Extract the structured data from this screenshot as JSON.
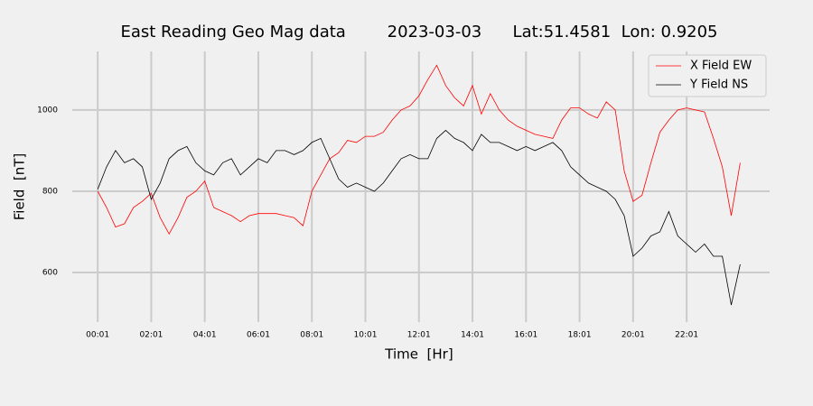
{
  "chart_data": {
    "type": "line",
    "title": "East Reading Geo Mag data        2023-03-03      Lat:51.4581  Lon: 0.9205",
    "xlabel": "Time  [Hr]",
    "ylabel": "Field  [nT]",
    "x": [
      1,
      21,
      41,
      61,
      81,
      101,
      121,
      141,
      161,
      181,
      201,
      221,
      241,
      261,
      281,
      301,
      321,
      341,
      361,
      381,
      401,
      421,
      441,
      461,
      481,
      501,
      521,
      541,
      561,
      581,
      601,
      621,
      641,
      661,
      681,
      701,
      721,
      741,
      761,
      781,
      801,
      821,
      841,
      861,
      881,
      901,
      921,
      941,
      961,
      981,
      1001,
      1021,
      1041,
      1061,
      1081,
      1101,
      1121,
      1141,
      1161,
      1181,
      1201,
      1221,
      1241,
      1261,
      1281,
      1301,
      1321,
      1341,
      1361,
      1381,
      1401,
      1421,
      1441
    ],
    "series": [
      {
        "name": "X Field EW",
        "color": "#ff0000",
        "values": [
          800,
          760,
          712,
          720,
          760,
          775,
          795,
          735,
          695,
          735,
          785,
          800,
          825,
          760,
          750,
          740,
          725,
          740,
          745,
          745,
          745,
          740,
          735,
          715,
          800,
          840,
          880,
          895,
          925,
          920,
          935,
          935,
          945,
          975,
          1000,
          1010,
          1035,
          1075,
          1110,
          1060,
          1030,
          1010,
          1060,
          990,
          1040,
          1000,
          975,
          960,
          950,
          940,
          935,
          930,
          975,
          1005,
          1005,
          990,
          980,
          1020,
          1000,
          850,
          775,
          790,
          870,
          945,
          975,
          1000,
          1005,
          1000,
          995,
          930,
          860,
          740,
          870
        ]
      },
      {
        "name": "Y Field NS",
        "color": "#000000",
        "values": [
          805,
          860,
          900,
          870,
          880,
          860,
          780,
          820,
          880,
          900,
          910,
          870,
          850,
          840,
          870,
          880,
          840,
          860,
          880,
          870,
          900,
          900,
          890,
          900,
          920,
          930,
          880,
          830,
          810,
          820,
          810,
          800,
          820,
          850,
          880,
          890,
          880,
          880,
          930,
          950,
          930,
          920,
          900,
          940,
          920,
          920,
          910,
          900,
          910,
          900,
          910,
          920,
          900,
          860,
          840,
          820,
          810,
          800,
          780,
          740,
          640,
          660,
          690,
          700,
          750,
          690,
          670,
          650,
          670,
          640,
          640,
          520,
          620
        ]
      }
    ],
    "xlim": [
      -56,
      1507
    ],
    "xticks": [
      {
        "value": 1,
        "label": "00:01"
      },
      {
        "value": 121,
        "label": "02:01"
      },
      {
        "value": 241,
        "label": "04:01"
      },
      {
        "value": 361,
        "label": "06:01"
      },
      {
        "value": 481,
        "label": "08:01"
      },
      {
        "value": 601,
        "label": "10:01"
      },
      {
        "value": 721,
        "label": "12:01"
      },
      {
        "value": 841,
        "label": "14:01"
      },
      {
        "value": 961,
        "label": "16:01"
      },
      {
        "value": 1081,
        "label": "18:01"
      },
      {
        "value": 1201,
        "label": "20:01"
      },
      {
        "value": 1321,
        "label": "22:01"
      }
    ],
    "ylim": [
      478,
      1144
    ],
    "yticks": [
      600,
      800,
      1000
    ],
    "grid": true,
    "legend": "upper right"
  }
}
